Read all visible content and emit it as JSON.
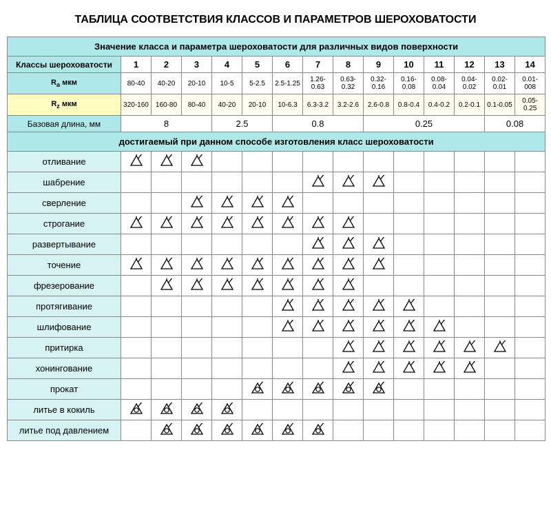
{
  "title": "ТАБЛИЦА СООТВЕТСТВИЯ КЛАССОВ И ПАРАМЕТРОВ ШЕРОХОВАТОСТИ",
  "header1": "Значение класса и  параметра шероховатости для различных видов поверхности",
  "classes_label": "Классы шероховатости",
  "class_numbers": [
    "1",
    "2",
    "3",
    "4",
    "5",
    "6",
    "7",
    "8",
    "9",
    "10",
    "11",
    "12",
    "13",
    "14"
  ],
  "ra_label_pre": "R",
  "ra_label_sub": "a",
  "ra_label_post": " мкм",
  "ra_values": [
    "80-40",
    "40-20",
    "20-10",
    "10-5",
    "5-2.5",
    "2.5-1.25",
    "1.26-0.63",
    "0.63-0.32",
    "0.32-0.16",
    "0.16-0.08",
    "0.08-0.04",
    "0.04-0.02",
    "0.02-0.01",
    "0.01-008"
  ],
  "rz_label_pre": "R",
  "rz_label_sub": "z",
  "rz_label_post": " мкм",
  "rz_values": [
    "320-160",
    "160-80",
    "80-40",
    "40-20",
    "20-10",
    "10-6.3",
    "6.3-3.2",
    "3.2-2.6",
    "2.6-0.8",
    "0.8-0.4",
    "0.4-0.2",
    "0.2-0.1",
    "0.1-0.05",
    "0.05-0.25"
  ],
  "base_label": "Базовая длина, мм",
  "base_groups": [
    {
      "span": 3,
      "val": "8"
    },
    {
      "span": 2,
      "val": "2.5"
    },
    {
      "span": 3,
      "val": "0.8"
    },
    {
      "span": 4,
      "val": "0.25"
    },
    {
      "span": 2,
      "val": "0.08"
    }
  ],
  "header2": "достигаемый при данном способе изготовления класс шероховатости",
  "methods": [
    {
      "name": "отливание",
      "marks": [
        "t",
        "t",
        "t",
        "",
        "",
        "",
        "",
        "",
        "",
        "",
        "",
        "",
        "",
        ""
      ]
    },
    {
      "name": "шабрение",
      "marks": [
        "",
        "",
        "",
        "",
        "",
        "",
        "t",
        "t",
        "t",
        "",
        "",
        "",
        "",
        ""
      ]
    },
    {
      "name": "сверление",
      "marks": [
        "",
        "",
        "t",
        "t",
        "t",
        "t",
        "",
        "",
        "",
        "",
        "",
        "",
        "",
        ""
      ]
    },
    {
      "name": "строгание",
      "marks": [
        "t",
        "t",
        "t",
        "t",
        "t",
        "t",
        "t",
        "t",
        "",
        "",
        "",
        "",
        "",
        ""
      ]
    },
    {
      "name": "развертывание",
      "marks": [
        "",
        "",
        "",
        "",
        "",
        "",
        "t",
        "t",
        "t",
        "",
        "",
        "",
        "",
        ""
      ]
    },
    {
      "name": "точение",
      "marks": [
        "t",
        "t",
        "t",
        "t",
        "t",
        "t",
        "t",
        "t",
        "t",
        "",
        "",
        "",
        "",
        ""
      ]
    },
    {
      "name": "фрезерование",
      "marks": [
        "",
        "t",
        "t",
        "t",
        "t",
        "t",
        "t",
        "t",
        "",
        "",
        "",
        "",
        "",
        ""
      ]
    },
    {
      "name": "протягивание",
      "marks": [
        "",
        "",
        "",
        "",
        "",
        "t",
        "t",
        "t",
        "t",
        "t",
        "",
        "",
        "",
        ""
      ]
    },
    {
      "name": "шлифование",
      "marks": [
        "",
        "",
        "",
        "",
        "",
        "t",
        "t",
        "t",
        "t",
        "t",
        "t",
        "",
        "",
        ""
      ]
    },
    {
      "name": "притирка",
      "marks": [
        "",
        "",
        "",
        "",
        "",
        "",
        "",
        "t",
        "t",
        "t",
        "t",
        "t",
        "t",
        ""
      ]
    },
    {
      "name": "хонингование",
      "marks": [
        "",
        "",
        "",
        "",
        "",
        "",
        "",
        "t",
        "t",
        "t",
        "t",
        "t",
        "",
        ""
      ]
    },
    {
      "name": "прокат",
      "marks": [
        "",
        "",
        "",
        "",
        "c",
        "c",
        "c",
        "c",
        "c",
        "",
        "",
        "",
        "",
        ""
      ]
    },
    {
      "name": "литье в кокиль",
      "marks": [
        "c",
        "c",
        "c",
        "c",
        "",
        "",
        "",
        "",
        "",
        "",
        "",
        "",
        "",
        ""
      ]
    },
    {
      "name": "литье под давлением",
      "marks": [
        "",
        "c",
        "c",
        "c",
        "c",
        "c",
        "c",
        "",
        "",
        "",
        "",
        "",
        "",
        ""
      ]
    }
  ],
  "colors": {
    "teal": "#aee8e8",
    "teal_light": "#d6f2f2",
    "yellow": "#fffcc0",
    "yellow_light": "#fffef0",
    "border": "#888",
    "text": "#000"
  }
}
